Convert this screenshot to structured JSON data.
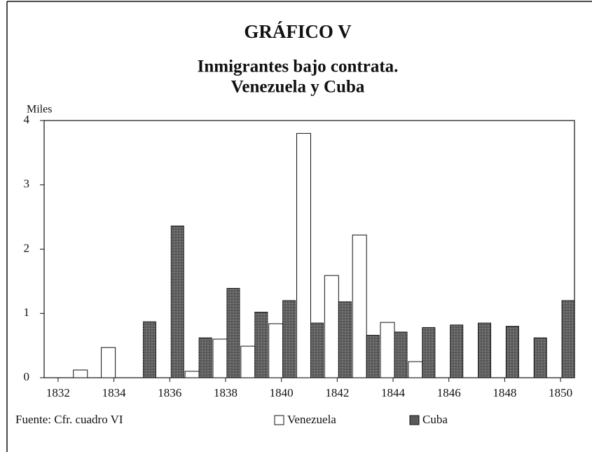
{
  "chart_data": {
    "type": "bar",
    "title": "GRÁFICO V",
    "subtitle": [
      "Inmigrantes bajo contrata.",
      "Venezuela y Cuba"
    ],
    "ylabel": "Miles",
    "source": "Fuente: Cfr. cuadro VI",
    "x": [
      1832,
      1833,
      1834,
      1835,
      1836,
      1837,
      1838,
      1839,
      1840,
      1841,
      1842,
      1843,
      1844,
      1845,
      1846,
      1847,
      1848,
      1849,
      1850
    ],
    "series": [
      {
        "name": "Venezuela",
        "color": "#ffffff",
        "values": [
          null,
          0.12,
          0.47,
          null,
          null,
          0.1,
          0.6,
          0.49,
          0.84,
          3.8,
          1.59,
          2.22,
          0.86,
          0.25,
          null,
          null,
          null,
          null,
          null
        ]
      },
      {
        "name": "Cuba",
        "color": "#5a5a5a",
        "values": [
          null,
          null,
          null,
          0.87,
          2.36,
          0.62,
          1.39,
          1.02,
          1.2,
          0.85,
          1.18,
          0.66,
          0.71,
          0.78,
          0.82,
          0.85,
          0.8,
          0.62,
          1.2
        ]
      }
    ],
    "xlim": [
      1831.5,
      1850.5
    ],
    "xticks": [
      1832,
      1834,
      1836,
      1838,
      1840,
      1842,
      1844,
      1846,
      1848,
      1850
    ],
    "ylim": [
      0,
      4
    ],
    "yticks": [
      0,
      1,
      2,
      3,
      4
    ]
  }
}
